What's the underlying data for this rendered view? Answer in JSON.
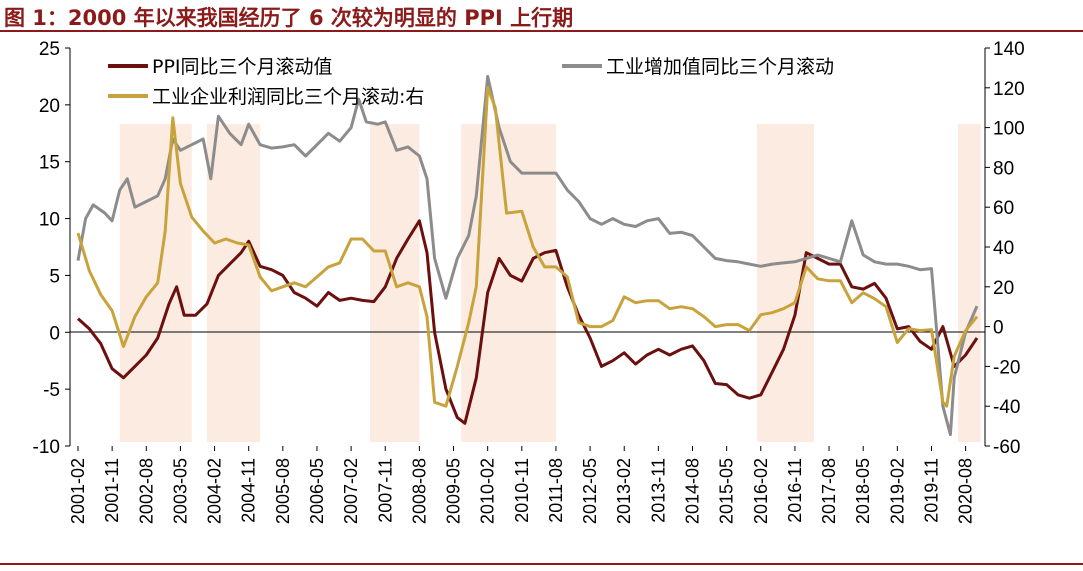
{
  "figure": {
    "title": "图 1：2000 年以来我国经历了 6 次较为明显的 PPI 上行期"
  },
  "chart_data": {
    "type": "line",
    "title": "图 1：2000 年以来我国经历了 6 次较为明显的 PPI 上行期",
    "x_labels": [
      "2001-02",
      "2001-11",
      "2002-08",
      "2003-05",
      "2004-02",
      "2004-11",
      "2005-08",
      "2006-05",
      "2007-02",
      "2007-11",
      "2008-08",
      "2009-05",
      "2010-02",
      "2010-11",
      "2011-08",
      "2012-05",
      "2013-02",
      "2013-11",
      "2014-08",
      "2015-05",
      "2016-02",
      "2016-11",
      "2017-08",
      "2018-05",
      "2019-02",
      "2019-11",
      "2020-08"
    ],
    "x_range": [
      "2001-02",
      "2020-11"
    ],
    "y_left": {
      "ylim": [
        -10,
        25
      ],
      "ticks": [
        -10,
        -5,
        0,
        5,
        10,
        15,
        20,
        25
      ]
    },
    "y_right": {
      "ylim": [
        -60,
        140
      ],
      "ticks": [
        -60,
        -40,
        -20,
        0,
        20,
        40,
        60,
        80,
        100,
        120,
        140
      ]
    },
    "grid": false,
    "legend_position": "top",
    "shaded_periods": [
      {
        "start": "2002-01",
        "end": "2003-08"
      },
      {
        "start": "2003-12",
        "end": "2005-02"
      },
      {
        "start": "2007-07",
        "end": "2008-08"
      },
      {
        "start": "2009-07",
        "end": "2011-08"
      },
      {
        "start": "2016-01",
        "end": "2017-04"
      },
      {
        "start": "2020-06",
        "end": "2020-12"
      }
    ],
    "series": [
      {
        "name": "PPI同比三个月滚动值",
        "axis": "left",
        "color": "#6b0f0f",
        "points": [
          [
            "2001-02",
            1.2
          ],
          [
            "2001-05",
            0.3
          ],
          [
            "2001-08",
            -1.0
          ],
          [
            "2001-11",
            -3.2
          ],
          [
            "2002-02",
            -4.0
          ],
          [
            "2002-05",
            -3.0
          ],
          [
            "2002-08",
            -2.0
          ],
          [
            "2002-11",
            -0.5
          ],
          [
            "2003-02",
            2.5
          ],
          [
            "2003-04",
            4.0
          ],
          [
            "2003-06",
            1.5
          ],
          [
            "2003-09",
            1.5
          ],
          [
            "2003-12",
            2.5
          ],
          [
            "2004-03",
            5.0
          ],
          [
            "2004-06",
            6.0
          ],
          [
            "2004-09",
            7.0
          ],
          [
            "2004-11",
            8.0
          ],
          [
            "2005-02",
            5.8
          ],
          [
            "2005-05",
            5.5
          ],
          [
            "2005-08",
            5.0
          ],
          [
            "2005-11",
            3.5
          ],
          [
            "2006-02",
            3.0
          ],
          [
            "2006-05",
            2.3
          ],
          [
            "2006-08",
            3.5
          ],
          [
            "2006-11",
            2.8
          ],
          [
            "2007-02",
            3.0
          ],
          [
            "2007-05",
            2.8
          ],
          [
            "2007-08",
            2.7
          ],
          [
            "2007-11",
            4.0
          ],
          [
            "2008-02",
            6.5
          ],
          [
            "2008-05",
            8.2
          ],
          [
            "2008-08",
            9.8
          ],
          [
            "2008-10",
            7.0
          ],
          [
            "2008-12",
            0.0
          ],
          [
            "2009-03",
            -5.0
          ],
          [
            "2009-06",
            -7.5
          ],
          [
            "2009-08",
            -8.0
          ],
          [
            "2009-11",
            -4.0
          ],
          [
            "2010-02",
            3.5
          ],
          [
            "2010-05",
            6.5
          ],
          [
            "2010-08",
            5.0
          ],
          [
            "2010-11",
            4.5
          ],
          [
            "2011-02",
            6.5
          ],
          [
            "2011-05",
            7.0
          ],
          [
            "2011-08",
            7.2
          ],
          [
            "2011-11",
            4.0
          ],
          [
            "2012-02",
            1.5
          ],
          [
            "2012-05",
            -0.5
          ],
          [
            "2012-08",
            -3.0
          ],
          [
            "2012-11",
            -2.5
          ],
          [
            "2013-02",
            -1.8
          ],
          [
            "2013-05",
            -2.8
          ],
          [
            "2013-08",
            -2.0
          ],
          [
            "2013-11",
            -1.5
          ],
          [
            "2014-02",
            -2.0
          ],
          [
            "2014-05",
            -1.5
          ],
          [
            "2014-08",
            -1.2
          ],
          [
            "2014-11",
            -2.5
          ],
          [
            "2015-02",
            -4.5
          ],
          [
            "2015-05",
            -4.6
          ],
          [
            "2015-08",
            -5.5
          ],
          [
            "2015-11",
            -5.8
          ],
          [
            "2016-02",
            -5.5
          ],
          [
            "2016-05",
            -3.5
          ],
          [
            "2016-08",
            -1.5
          ],
          [
            "2016-11",
            1.5
          ],
          [
            "2017-02",
            7.0
          ],
          [
            "2017-05",
            6.5
          ],
          [
            "2017-08",
            6.0
          ],
          [
            "2017-11",
            6.0
          ],
          [
            "2018-02",
            4.0
          ],
          [
            "2018-05",
            3.8
          ],
          [
            "2018-08",
            4.3
          ],
          [
            "2018-11",
            3.0
          ],
          [
            "2019-02",
            0.3
          ],
          [
            "2019-05",
            0.5
          ],
          [
            "2019-08",
            -0.8
          ],
          [
            "2019-11",
            -1.5
          ],
          [
            "2020-02",
            0.5
          ],
          [
            "2020-05",
            -3.0
          ],
          [
            "2020-08",
            -2.0
          ],
          [
            "2020-11",
            -0.5
          ]
        ]
      },
      {
        "name": "工业增加值同比三个月滚动",
        "axis": "left",
        "color": "#8c8c8c",
        "points": [
          [
            "2001-02",
            6.3
          ],
          [
            "2001-04",
            10.0
          ],
          [
            "2001-06",
            11.2
          ],
          [
            "2001-09",
            10.5
          ],
          [
            "2001-11",
            9.8
          ],
          [
            "2002-01",
            12.5
          ],
          [
            "2002-03",
            13.5
          ],
          [
            "2002-05",
            11.0
          ],
          [
            "2002-08",
            11.5
          ],
          [
            "2002-11",
            12.0
          ],
          [
            "2003-01",
            13.5
          ],
          [
            "2003-03",
            17.0
          ],
          [
            "2003-05",
            16.0
          ],
          [
            "2003-08",
            16.5
          ],
          [
            "2003-11",
            17.0
          ],
          [
            "2004-01",
            13.5
          ],
          [
            "2004-03",
            19.0
          ],
          [
            "2004-06",
            17.5
          ],
          [
            "2004-09",
            16.5
          ],
          [
            "2004-11",
            18.3
          ],
          [
            "2005-02",
            16.5
          ],
          [
            "2005-05",
            16.2
          ],
          [
            "2005-08",
            16.3
          ],
          [
            "2005-11",
            16.5
          ],
          [
            "2006-02",
            15.5
          ],
          [
            "2006-05",
            16.5
          ],
          [
            "2006-08",
            17.5
          ],
          [
            "2006-11",
            16.8
          ],
          [
            "2007-02",
            18.0
          ],
          [
            "2007-04",
            20.5
          ],
          [
            "2007-06",
            18.5
          ],
          [
            "2007-09",
            18.3
          ],
          [
            "2007-11",
            18.5
          ],
          [
            "2008-02",
            16.0
          ],
          [
            "2008-05",
            16.3
          ],
          [
            "2008-08",
            15.5
          ],
          [
            "2008-10",
            13.5
          ],
          [
            "2008-12",
            6.5
          ],
          [
            "2009-03",
            3.0
          ],
          [
            "2009-06",
            6.5
          ],
          [
            "2009-09",
            8.5
          ],
          [
            "2009-11",
            12.0
          ],
          [
            "2010-02",
            22.5
          ],
          [
            "2010-05",
            18.0
          ],
          [
            "2010-08",
            15.0
          ],
          [
            "2010-11",
            14.0
          ],
          [
            "2011-02",
            14.0
          ],
          [
            "2011-05",
            14.0
          ],
          [
            "2011-08",
            14.0
          ],
          [
            "2011-11",
            12.5
          ],
          [
            "2012-02",
            11.5
          ],
          [
            "2012-05",
            10.0
          ],
          [
            "2012-08",
            9.5
          ],
          [
            "2012-11",
            10.0
          ],
          [
            "2013-02",
            9.5
          ],
          [
            "2013-05",
            9.3
          ],
          [
            "2013-08",
            9.8
          ],
          [
            "2013-11",
            10.0
          ],
          [
            "2014-02",
            8.7
          ],
          [
            "2014-05",
            8.8
          ],
          [
            "2014-08",
            8.5
          ],
          [
            "2014-11",
            7.5
          ],
          [
            "2015-02",
            6.5
          ],
          [
            "2015-05",
            6.3
          ],
          [
            "2015-08",
            6.2
          ],
          [
            "2015-11",
            6.0
          ],
          [
            "2016-02",
            5.8
          ],
          [
            "2016-05",
            6.0
          ],
          [
            "2016-08",
            6.1
          ],
          [
            "2016-11",
            6.2
          ],
          [
            "2017-02",
            6.5
          ],
          [
            "2017-05",
            6.8
          ],
          [
            "2017-08",
            6.5
          ],
          [
            "2017-11",
            6.2
          ],
          [
            "2018-02",
            9.8
          ],
          [
            "2018-05",
            6.8
          ],
          [
            "2018-08",
            6.2
          ],
          [
            "2018-11",
            6.0
          ],
          [
            "2019-02",
            6.0
          ],
          [
            "2019-05",
            5.8
          ],
          [
            "2019-08",
            5.5
          ],
          [
            "2019-11",
            5.6
          ],
          [
            "2020-02",
            -6.5
          ],
          [
            "2020-04",
            -9.0
          ],
          [
            "2020-05",
            -4.0
          ],
          [
            "2020-08",
            0.0
          ],
          [
            "2020-11",
            2.3
          ]
        ]
      },
      {
        "name": "工业企业利润同比三个月滚动:右",
        "axis": "right",
        "color": "#c8a33c",
        "points": [
          [
            "2001-02",
            47.0
          ],
          [
            "2001-05",
            28.0
          ],
          [
            "2001-08",
            16.0
          ],
          [
            "2001-11",
            8.0
          ],
          [
            "2002-02",
            -10.0
          ],
          [
            "2002-05",
            5.0
          ],
          [
            "2002-08",
            15.0
          ],
          [
            "2002-11",
            22.0
          ],
          [
            "2003-01",
            48.0
          ],
          [
            "2003-03",
            105.0
          ],
          [
            "2003-05",
            72.0
          ],
          [
            "2003-08",
            55.0
          ],
          [
            "2003-11",
            48.0
          ],
          [
            "2004-02",
            42.0
          ],
          [
            "2004-05",
            44.0
          ],
          [
            "2004-08",
            42.0
          ],
          [
            "2004-11",
            41.0
          ],
          [
            "2005-02",
            25.0
          ],
          [
            "2005-05",
            18.0
          ],
          [
            "2005-08",
            20.0
          ],
          [
            "2005-11",
            22.0
          ],
          [
            "2006-02",
            20.0
          ],
          [
            "2006-05",
            25.0
          ],
          [
            "2006-08",
            30.0
          ],
          [
            "2006-11",
            32.0
          ],
          [
            "2007-02",
            44.0
          ],
          [
            "2007-05",
            44.0
          ],
          [
            "2007-08",
            38.0
          ],
          [
            "2007-11",
            38.0
          ],
          [
            "2008-02",
            20.0
          ],
          [
            "2008-05",
            22.0
          ],
          [
            "2008-08",
            20.0
          ],
          [
            "2008-10",
            5.0
          ],
          [
            "2008-12",
            -38.0
          ],
          [
            "2009-03",
            -40.0
          ],
          [
            "2009-06",
            -20.0
          ],
          [
            "2009-09",
            2.0
          ],
          [
            "2009-11",
            20.0
          ],
          [
            "2010-02",
            120.0
          ],
          [
            "2010-04",
            110.0
          ],
          [
            "2010-07",
            57.0
          ],
          [
            "2010-11",
            58.0
          ],
          [
            "2011-02",
            40.0
          ],
          [
            "2011-05",
            30.0
          ],
          [
            "2011-08",
            30.0
          ],
          [
            "2011-11",
            25.0
          ],
          [
            "2012-02",
            2.0
          ],
          [
            "2012-05",
            0.0
          ],
          [
            "2012-08",
            0.0
          ],
          [
            "2012-11",
            3.0
          ],
          [
            "2013-02",
            15.0
          ],
          [
            "2013-05",
            12.0
          ],
          [
            "2013-08",
            13.0
          ],
          [
            "2013-11",
            13.0
          ],
          [
            "2014-02",
            9.0
          ],
          [
            "2014-05",
            10.0
          ],
          [
            "2014-08",
            9.0
          ],
          [
            "2014-11",
            5.0
          ],
          [
            "2015-02",
            0.0
          ],
          [
            "2015-05",
            1.0
          ],
          [
            "2015-08",
            1.0
          ],
          [
            "2015-11",
            -2.0
          ],
          [
            "2016-02",
            6.0
          ],
          [
            "2016-05",
            7.0
          ],
          [
            "2016-08",
            9.0
          ],
          [
            "2016-11",
            12.0
          ],
          [
            "2017-02",
            30.0
          ],
          [
            "2017-05",
            24.0
          ],
          [
            "2017-08",
            23.0
          ],
          [
            "2017-11",
            23.0
          ],
          [
            "2018-02",
            12.0
          ],
          [
            "2018-05",
            17.0
          ],
          [
            "2018-08",
            14.0
          ],
          [
            "2018-11",
            10.0
          ],
          [
            "2019-02",
            -8.0
          ],
          [
            "2019-05",
            -1.0
          ],
          [
            "2019-08",
            -2.0
          ],
          [
            "2019-11",
            -1.5
          ],
          [
            "2020-02",
            -38.0
          ],
          [
            "2020-03",
            -40.0
          ],
          [
            "2020-05",
            -15.0
          ],
          [
            "2020-08",
            -2.0
          ],
          [
            "2020-11",
            5.0
          ]
        ]
      }
    ]
  }
}
